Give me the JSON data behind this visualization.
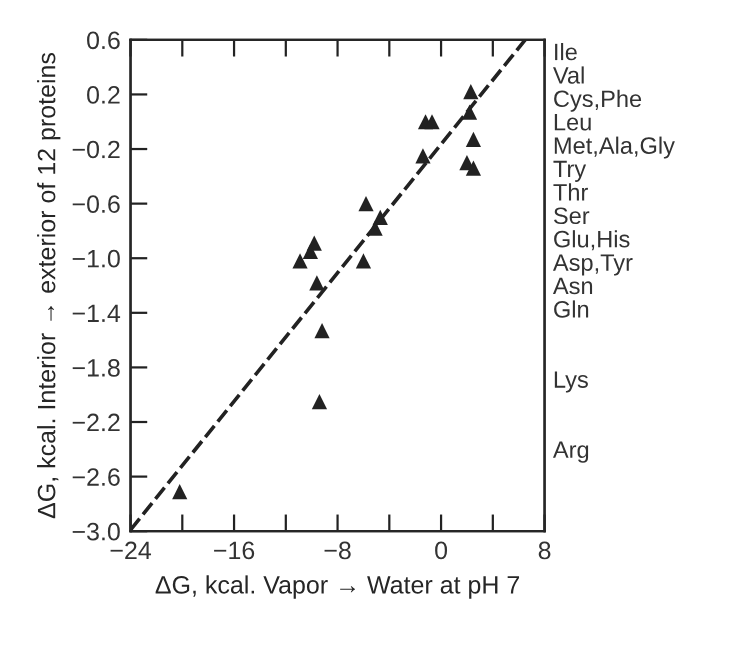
{
  "chart_data": {
    "type": "scatter",
    "xlabel": "ΔG, kcal. Vapor → Water at pH 7",
    "ylabel": "ΔG, kcal. Interior → exterior of 12 proteins",
    "series": [
      {
        "color": "#222222",
        "marker": "triangle",
        "x": [
          2.3,
          -1.2,
          -0.7,
          2.2,
          2.5,
          -1.4,
          2.0,
          2.5,
          -5.8,
          -4.7,
          -5.1,
          -9.8,
          -10.1,
          -10.9,
          -6.0,
          -9.6,
          -9.2,
          -9.4,
          -20.2
        ],
        "values": [
          0.22,
          0.0,
          0.0,
          0.07,
          -0.13,
          -0.25,
          -0.3,
          -0.34,
          -0.6,
          -0.7,
          -0.78,
          -0.89,
          -0.95,
          -1.02,
          -1.02,
          -1.18,
          -1.53,
          -2.05,
          -2.71
        ]
      },
      {
        "type": "line",
        "color": "#222222",
        "line_style": "dashed",
        "marker": "none",
        "x": [
          -24,
          6.5
        ],
        "values": [
          -2.99,
          0.6
        ]
      }
    ],
    "xlim": [
      -24,
      8
    ],
    "ylim": [
      -3.0,
      0.6
    ],
    "xticks": [
      -24,
      {
        "value": -20,
        "label": null
      },
      -16,
      {
        "value": -12,
        "label": null
      },
      -8,
      {
        "value": -4,
        "label": null
      },
      0,
      {
        "value": 4,
        "label": null
      },
      8
    ],
    "yticks": [
      0.6,
      0.2,
      -0.2,
      -0.6,
      {
        "value": -1.0,
        "label": "−1.0"
      },
      -1.4,
      -1.8,
      -2.2,
      -2.6,
      {
        "value": -3.0,
        "label": "−3.0"
      }
    ],
    "y2_categories": [
      "Ile",
      "Val",
      "Cys,Phe",
      "Leu",
      "Met,Ala,Gly",
      "Try",
      "Thr",
      "Ser",
      "Glu,His",
      "Asp,Tyr",
      "Asn",
      "Gln",
      null,
      null,
      "Lys",
      null,
      null,
      "Arg",
      null,
      null,
      null
    ],
    "grid": false,
    "legend": false
  }
}
